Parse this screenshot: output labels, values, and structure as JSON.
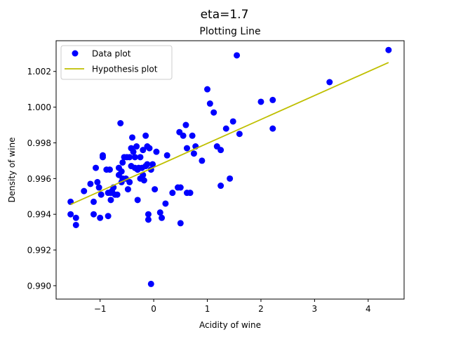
{
  "figure": {
    "suptitle": "eta=1.7"
  },
  "chart_data": {
    "type": "scatter",
    "title": "Plotting Line",
    "xlabel": "Acidity of wine",
    "ylabel": "Density of wine",
    "xlim": [
      -1.82,
      4.67
    ],
    "ylim": [
      0.98925,
      1.00372
    ],
    "xticks": [
      -1,
      0,
      1,
      2,
      3,
      4
    ],
    "xtick_labels": [
      "−1",
      "0",
      "1",
      "2",
      "3",
      "4"
    ],
    "yticks": [
      0.99,
      0.992,
      0.994,
      0.996,
      0.998,
      1.0,
      1.002
    ],
    "ytick_labels": [
      "0.990",
      "0.992",
      "0.994",
      "0.996",
      "0.998",
      "1.000",
      "1.002"
    ],
    "legend": {
      "placement": "upper-left"
    },
    "series": [
      {
        "name": "Data plot",
        "kind": "points",
        "color": "#0000ff",
        "points": [
          [
            -1.55,
            0.9947
          ],
          [
            -1.55,
            0.994
          ],
          [
            -1.45,
            0.9938
          ],
          [
            -1.45,
            0.9934
          ],
          [
            -1.3,
            0.9953
          ],
          [
            -1.18,
            0.9957
          ],
          [
            -1.12,
            0.9947
          ],
          [
            -1.12,
            0.994
          ],
          [
            -1.08,
            0.9966
          ],
          [
            -1.05,
            0.9958
          ],
          [
            -1.02,
            0.9955
          ],
          [
            -1.0,
            0.9938
          ],
          [
            -0.98,
            0.9951
          ],
          [
            -0.95,
            0.9973
          ],
          [
            -0.95,
            0.9972
          ],
          [
            -0.88,
            0.9965
          ],
          [
            -0.85,
            0.9952
          ],
          [
            -0.85,
            0.9939
          ],
          [
            -0.82,
            0.9965
          ],
          [
            -0.8,
            0.9948
          ],
          [
            -0.8,
            0.9952
          ],
          [
            -0.78,
            0.9953
          ],
          [
            -0.75,
            0.9955
          ],
          [
            -0.72,
            0.9951
          ],
          [
            -0.68,
            0.9951
          ],
          [
            -0.65,
            0.9966
          ],
          [
            -0.65,
            0.9962
          ],
          [
            -0.62,
            0.9991
          ],
          [
            -0.6,
            0.9964
          ],
          [
            -0.6,
            0.9958
          ],
          [
            -0.58,
            0.9969
          ],
          [
            -0.58,
            0.996
          ],
          [
            -0.55,
            0.9972
          ],
          [
            -0.52,
            0.996
          ],
          [
            -0.5,
            0.9972
          ],
          [
            -0.48,
            0.9954
          ],
          [
            -0.45,
            0.9958
          ],
          [
            -0.45,
            0.9972
          ],
          [
            -0.42,
            0.9977
          ],
          [
            -0.42,
            0.9967
          ],
          [
            -0.4,
            0.9983
          ],
          [
            -0.38,
            0.9975
          ],
          [
            -0.35,
            0.9966
          ],
          [
            -0.35,
            0.9972
          ],
          [
            -0.32,
            0.9978
          ],
          [
            -0.3,
            0.9948
          ],
          [
            -0.3,
            0.9965
          ],
          [
            -0.28,
            0.9966
          ],
          [
            -0.25,
            0.996
          ],
          [
            -0.25,
            0.9972
          ],
          [
            -0.22,
            0.9966
          ],
          [
            -0.2,
            0.9976
          ],
          [
            -0.2,
            0.9962
          ],
          [
            -0.18,
            0.9959
          ],
          [
            -0.15,
            0.9967
          ],
          [
            -0.15,
            0.9984
          ],
          [
            -0.12,
            0.9968
          ],
          [
            -0.12,
            0.9978
          ],
          [
            -0.1,
            0.994
          ],
          [
            -0.1,
            0.9937
          ],
          [
            -0.08,
            0.9977
          ],
          [
            -0.05,
            0.9965
          ],
          [
            -0.05,
            0.9901
          ],
          [
            -0.02,
            0.9968
          ],
          [
            0.02,
            0.9954
          ],
          [
            0.05,
            0.9975
          ],
          [
            0.12,
            0.9941
          ],
          [
            0.15,
            0.9938
          ],
          [
            0.22,
            0.9946
          ],
          [
            0.25,
            0.9973
          ],
          [
            0.35,
            0.9952
          ],
          [
            0.45,
            0.9955
          ],
          [
            0.48,
            0.9986
          ],
          [
            0.5,
            0.9955
          ],
          [
            0.5,
            0.9935
          ],
          [
            0.55,
            0.9984
          ],
          [
            0.6,
            0.999
          ],
          [
            0.62,
            0.9977
          ],
          [
            0.62,
            0.9952
          ],
          [
            0.68,
            0.9952
          ],
          [
            0.72,
            0.9984
          ],
          [
            0.75,
            0.9974
          ],
          [
            0.78,
            0.9978
          ],
          [
            0.9,
            0.997
          ],
          [
            1.0,
            1.001
          ],
          [
            1.05,
            1.0002
          ],
          [
            1.12,
            0.9997
          ],
          [
            1.18,
            0.9978
          ],
          [
            1.25,
            0.9956
          ],
          [
            1.25,
            0.9976
          ],
          [
            1.35,
            0.9988
          ],
          [
            1.42,
            0.996
          ],
          [
            1.48,
            0.9992
          ],
          [
            1.55,
            1.0029
          ],
          [
            1.6,
            0.9985
          ],
          [
            2.0,
            1.0003
          ],
          [
            2.22,
            1.0004
          ],
          [
            2.22,
            0.9988
          ],
          [
            3.28,
            1.0014
          ],
          [
            4.38,
            1.0032
          ]
        ]
      },
      {
        "name": "Hypothesis plot",
        "kind": "line",
        "color": "#bfbf00",
        "points": [
          [
            -1.55,
            0.99455
          ],
          [
            4.38,
            1.0025
          ]
        ]
      }
    ]
  }
}
